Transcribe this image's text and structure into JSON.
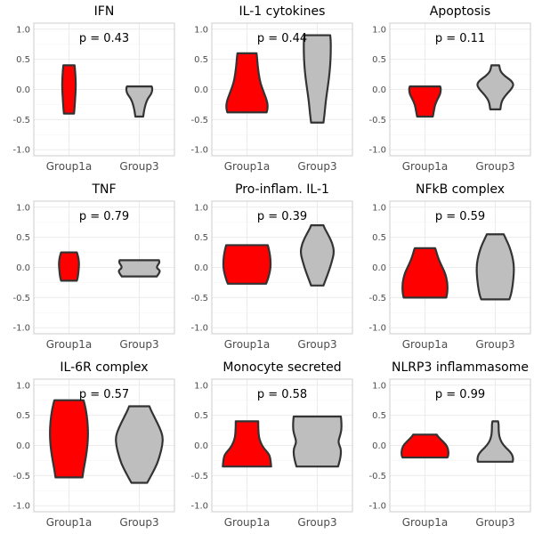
{
  "chart_data": {
    "type": "violin",
    "ylim": [
      -1.1,
      1.1
    ],
    "yticks": [
      -1.0,
      -0.5,
      0.0,
      0.5,
      1.0
    ],
    "ytick_labels": [
      "-1.0",
      "-0.5",
      "0.0",
      "0.5",
      "1.0"
    ],
    "categories": [
      "Group1a",
      "Group3"
    ],
    "colors": {
      "Group1a": "#ff0000",
      "Group3": "#bebebe",
      "outline": "#333333"
    },
    "grid": true,
    "panels": [
      {
        "title": "IFN",
        "p_label": "p = 0.43",
        "violins": [
          {
            "group": "Group1a",
            "min": -0.4,
            "max": 0.4,
            "profile": [
              [
                -0.4,
                0.18
              ],
              [
                -0.3,
                0.2
              ],
              [
                -0.15,
                0.22
              ],
              [
                0.0,
                0.24
              ],
              [
                0.15,
                0.24
              ],
              [
                0.3,
                0.22
              ],
              [
                0.4,
                0.2
              ]
            ]
          },
          {
            "group": "Group3",
            "min": -0.45,
            "max": 0.05,
            "profile": [
              [
                -0.45,
                0.14
              ],
              [
                -0.35,
                0.17
              ],
              [
                -0.25,
                0.22
              ],
              [
                -0.15,
                0.3
              ],
              [
                -0.08,
                0.42
              ],
              [
                -0.02,
                0.46
              ],
              [
                0.02,
                0.46
              ],
              [
                0.05,
                0.44
              ]
            ]
          }
        ]
      },
      {
        "title": "IL-1 cytokines",
        "p_label": "p = 0.44",
        "violins": [
          {
            "group": "Group1a",
            "min": -0.38,
            "max": 0.6,
            "profile": [
              [
                -0.38,
                0.7
              ],
              [
                -0.3,
                0.74
              ],
              [
                -0.2,
                0.72
              ],
              [
                -0.05,
                0.6
              ],
              [
                0.1,
                0.48
              ],
              [
                0.25,
                0.42
              ],
              [
                0.4,
                0.38
              ],
              [
                0.52,
                0.36
              ],
              [
                0.6,
                0.34
              ]
            ]
          },
          {
            "group": "Group3",
            "min": -0.55,
            "max": 0.9,
            "profile": [
              [
                -0.55,
                0.22
              ],
              [
                -0.4,
                0.26
              ],
              [
                -0.2,
                0.3
              ],
              [
                0.0,
                0.36
              ],
              [
                0.2,
                0.42
              ],
              [
                0.4,
                0.46
              ],
              [
                0.6,
                0.48
              ],
              [
                0.8,
                0.48
              ],
              [
                0.9,
                0.46
              ]
            ]
          }
        ]
      },
      {
        "title": "Apoptosis",
        "p_label": "p = 0.11",
        "violins": [
          {
            "group": "Group1a",
            "min": -0.45,
            "max": 0.05,
            "profile": [
              [
                -0.45,
                0.28
              ],
              [
                -0.35,
                0.32
              ],
              [
                -0.25,
                0.36
              ],
              [
                -0.15,
                0.46
              ],
              [
                -0.08,
                0.54
              ],
              [
                -0.02,
                0.56
              ],
              [
                0.02,
                0.56
              ],
              [
                0.05,
                0.54
              ]
            ]
          },
          {
            "group": "Group3",
            "min": -0.33,
            "max": 0.4,
            "profile": [
              [
                -0.33,
                0.18
              ],
              [
                -0.2,
                0.22
              ],
              [
                -0.1,
                0.36
              ],
              [
                0.0,
                0.56
              ],
              [
                0.08,
                0.66
              ],
              [
                0.15,
                0.56
              ],
              [
                0.22,
                0.34
              ],
              [
                0.3,
                0.18
              ],
              [
                0.4,
                0.14
              ]
            ]
          }
        ]
      },
      {
        "title": "TNF",
        "p_label": "p = 0.79",
        "violins": [
          {
            "group": "Group1a",
            "min": -0.22,
            "max": 0.25,
            "profile": [
              [
                -0.22,
                0.28
              ],
              [
                -0.15,
                0.32
              ],
              [
                -0.05,
                0.34
              ],
              [
                0.05,
                0.36
              ],
              [
                0.15,
                0.34
              ],
              [
                0.22,
                0.3
              ],
              [
                0.25,
                0.28
              ]
            ]
          },
          {
            "group": "Group3",
            "min": -0.15,
            "max": 0.12,
            "profile": [
              [
                -0.15,
                0.62
              ],
              [
                -0.1,
                0.7
              ],
              [
                -0.05,
                0.74
              ],
              [
                -0.01,
                0.62
              ],
              [
                0.03,
                0.64
              ],
              [
                0.08,
                0.72
              ],
              [
                0.12,
                0.7
              ]
            ]
          }
        ]
      },
      {
        "title": "Pro-inflam. IL-1",
        "p_label": "p = 0.39",
        "violins": [
          {
            "group": "Group1a",
            "min": -0.27,
            "max": 0.37,
            "profile": [
              [
                -0.27,
                0.68
              ],
              [
                -0.2,
                0.74
              ],
              [
                -0.1,
                0.8
              ],
              [
                0.0,
                0.84
              ],
              [
                0.1,
                0.84
              ],
              [
                0.2,
                0.82
              ],
              [
                0.3,
                0.78
              ],
              [
                0.37,
                0.74
              ]
            ]
          },
          {
            "group": "Group3",
            "min": -0.3,
            "max": 0.7,
            "profile": [
              [
                -0.3,
                0.22
              ],
              [
                -0.2,
                0.3
              ],
              [
                -0.05,
                0.42
              ],
              [
                0.1,
                0.52
              ],
              [
                0.25,
                0.6
              ],
              [
                0.4,
                0.54
              ],
              [
                0.55,
                0.38
              ],
              [
                0.65,
                0.26
              ],
              [
                0.7,
                0.22
              ]
            ]
          }
        ]
      },
      {
        "title": "NFkB complex",
        "p_label": "p = 0.59",
        "violins": [
          {
            "group": "Group1a",
            "min": -0.5,
            "max": 0.32,
            "profile": [
              [
                -0.5,
                0.76
              ],
              [
                -0.4,
                0.8
              ],
              [
                -0.25,
                0.8
              ],
              [
                -0.1,
                0.72
              ],
              [
                0.0,
                0.62
              ],
              [
                0.1,
                0.52
              ],
              [
                0.2,
                0.44
              ],
              [
                0.3,
                0.38
              ],
              [
                0.32,
                0.36
              ]
            ]
          },
          {
            "group": "Group3",
            "min": -0.53,
            "max": 0.55,
            "profile": [
              [
                -0.53,
                0.5
              ],
              [
                -0.45,
                0.56
              ],
              [
                -0.3,
                0.62
              ],
              [
                -0.1,
                0.66
              ],
              [
                0.05,
                0.66
              ],
              [
                0.2,
                0.6
              ],
              [
                0.35,
                0.5
              ],
              [
                0.45,
                0.4
              ],
              [
                0.55,
                0.3
              ]
            ]
          }
        ]
      },
      {
        "title": "IL-6R complex",
        "p_label": "p = 0.57",
        "violins": [
          {
            "group": "Group1a",
            "min": -0.53,
            "max": 0.75,
            "profile": [
              [
                -0.53,
                0.48
              ],
              [
                -0.4,
                0.52
              ],
              [
                -0.2,
                0.6
              ],
              [
                0.0,
                0.66
              ],
              [
                0.2,
                0.68
              ],
              [
                0.4,
                0.66
              ],
              [
                0.6,
                0.6
              ],
              [
                0.75,
                0.52
              ]
            ]
          },
          {
            "group": "Group3",
            "min": -0.62,
            "max": 0.65,
            "profile": [
              [
                -0.62,
                0.28
              ],
              [
                -0.45,
                0.48
              ],
              [
                -0.3,
                0.64
              ],
              [
                -0.15,
                0.74
              ],
              [
                0.0,
                0.82
              ],
              [
                0.15,
                0.84
              ],
              [
                0.3,
                0.72
              ],
              [
                0.45,
                0.56
              ],
              [
                0.58,
                0.42
              ],
              [
                0.65,
                0.36
              ]
            ]
          }
        ]
      },
      {
        "title": "Monocyte secreted",
        "p_label": "p = 0.58",
        "violins": [
          {
            "group": "Group1a",
            "min": -0.35,
            "max": 0.4,
            "profile": [
              [
                -0.35,
                0.86
              ],
              [
                -0.25,
                0.84
              ],
              [
                -0.15,
                0.8
              ],
              [
                -0.05,
                0.6
              ],
              [
                0.05,
                0.48
              ],
              [
                0.15,
                0.42
              ],
              [
                0.3,
                0.4
              ],
              [
                0.4,
                0.4
              ]
            ]
          },
          {
            "group": "Group3",
            "min": -0.35,
            "max": 0.48,
            "profile": [
              [
                -0.35,
                0.74
              ],
              [
                -0.25,
                0.8
              ],
              [
                -0.15,
                0.84
              ],
              [
                -0.05,
                0.84
              ],
              [
                0.05,
                0.74
              ],
              [
                0.15,
                0.8
              ],
              [
                0.25,
                0.86
              ],
              [
                0.38,
                0.86
              ],
              [
                0.48,
                0.84
              ]
            ]
          }
        ]
      },
      {
        "title": "NLRP3 inflammasome",
        "p_label": "p = 0.99",
        "violins": [
          {
            "group": "Group1a",
            "min": -0.2,
            "max": 0.18,
            "profile": [
              [
                -0.2,
                0.8
              ],
              [
                -0.15,
                0.84
              ],
              [
                -0.05,
                0.82
              ],
              [
                0.02,
                0.74
              ],
              [
                0.1,
                0.56
              ],
              [
                0.15,
                0.46
              ],
              [
                0.18,
                0.42
              ]
            ]
          },
          {
            "group": "Group3",
            "min": -0.27,
            "max": 0.4,
            "profile": [
              [
                -0.27,
                0.62
              ],
              [
                -0.2,
                0.64
              ],
              [
                -0.12,
                0.56
              ],
              [
                -0.03,
                0.36
              ],
              [
                0.05,
                0.22
              ],
              [
                0.15,
                0.14
              ],
              [
                0.25,
                0.12
              ],
              [
                0.35,
                0.12
              ],
              [
                0.4,
                0.1
              ]
            ]
          }
        ]
      }
    ]
  }
}
